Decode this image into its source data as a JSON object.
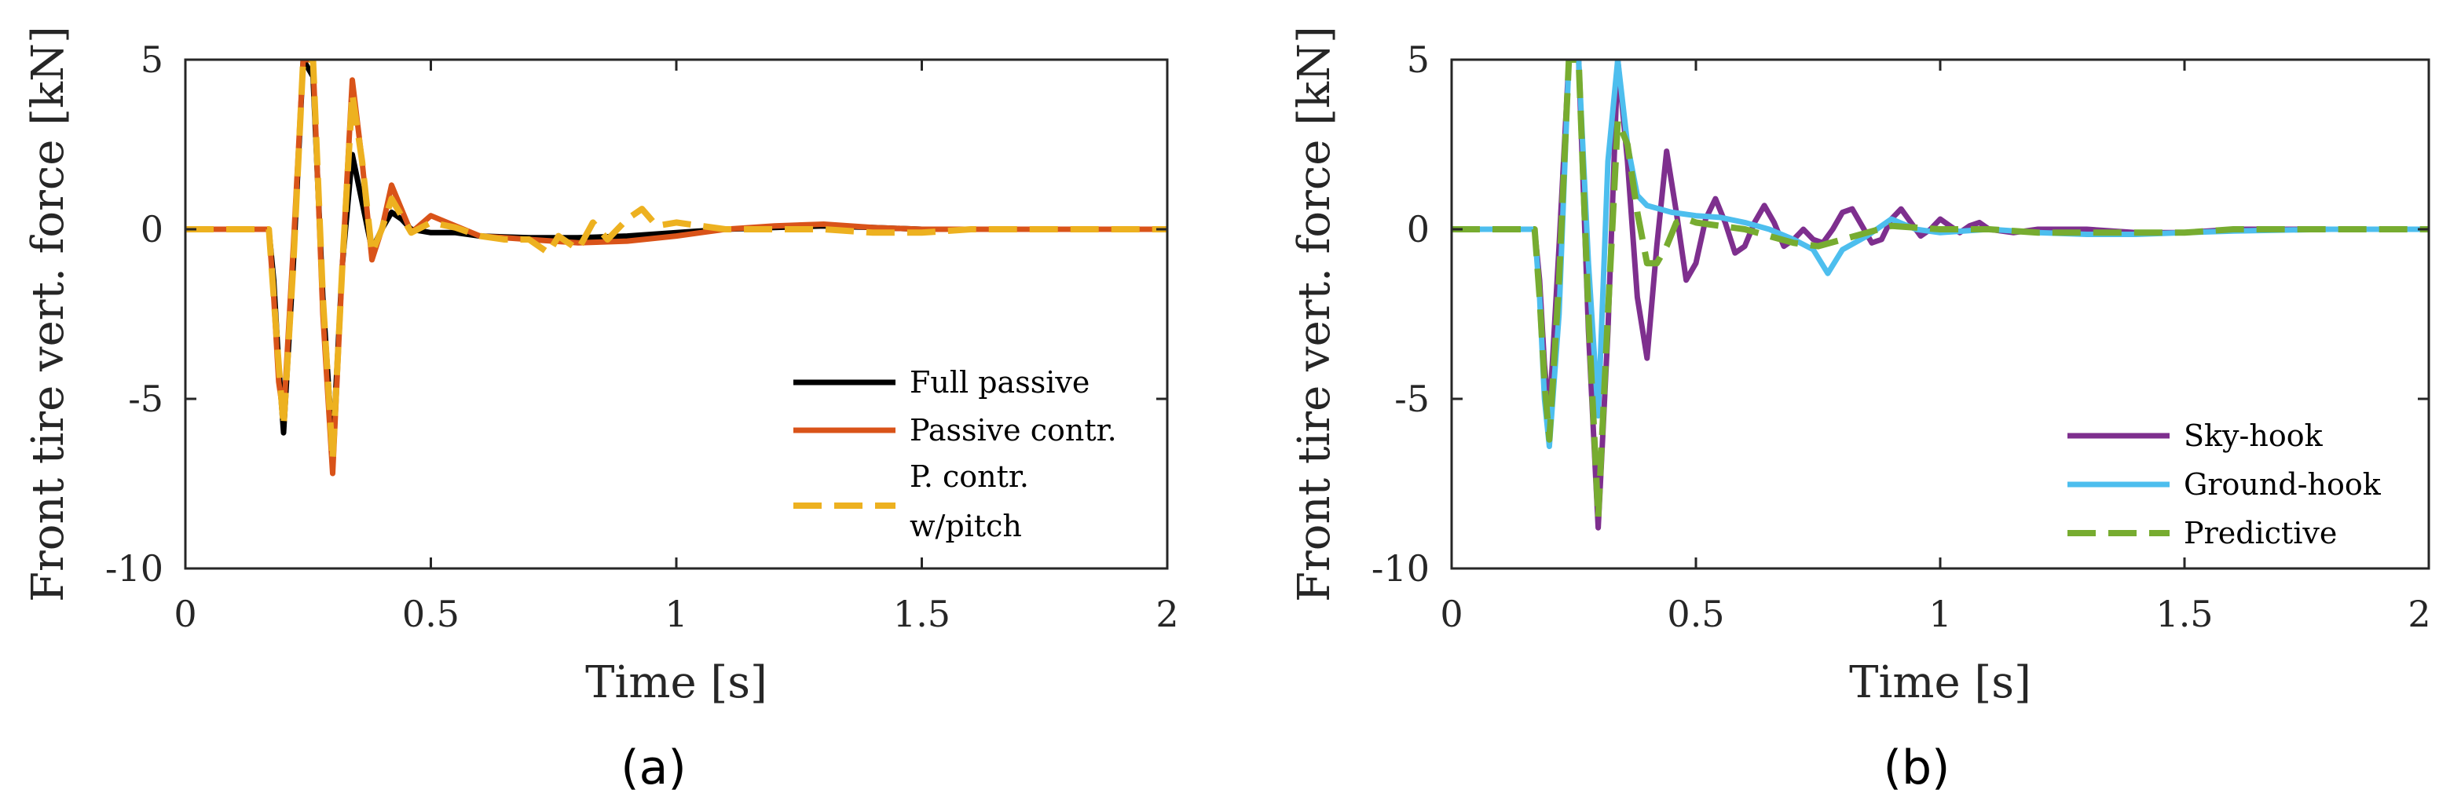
{
  "chart_data": [
    {
      "type": "line",
      "panel_label": "(a)",
      "xlabel": "Time [s]",
      "ylabel": "Front tire vert. force [kN]",
      "xlim": [
        0,
        2
      ],
      "ylim": [
        -10,
        5
      ],
      "xticks": [
        0,
        0.5,
        1,
        1.5,
        2
      ],
      "xtick_labels": [
        "0",
        "0.5",
        "1",
        "1.5",
        "2"
      ],
      "yticks": [
        5,
        0,
        -5,
        -10
      ],
      "ytick_labels": [
        "5",
        "0",
        "-5",
        "-10"
      ],
      "legend_position": "bottom-right",
      "series": [
        {
          "name": "Full passive",
          "color": "#000000",
          "dashed": false,
          "legend_lines": [
            "Full passive"
          ],
          "x": [
            0,
            0.17,
            0.18,
            0.19,
            0.2,
            0.22,
            0.24,
            0.26,
            0.28,
            0.3,
            0.32,
            0.34,
            0.36,
            0.38,
            0.4,
            0.42,
            0.44,
            0.46,
            0.5,
            0.55,
            0.6,
            0.7,
            0.8,
            0.9,
            1.0,
            1.1,
            1.2,
            1.3,
            1.4,
            1.5,
            1.6,
            1.8,
            2.0
          ],
          "y": [
            0,
            0,
            -1.5,
            -4.0,
            -6.0,
            -1.0,
            5.0,
            4.5,
            -2.0,
            -6.5,
            -1.0,
            2.2,
            0.8,
            -0.6,
            0.0,
            0.5,
            0.3,
            0.0,
            -0.1,
            -0.1,
            -0.2,
            -0.25,
            -0.25,
            -0.2,
            -0.1,
            0.0,
            0.05,
            0.1,
            0.05,
            0.0,
            0.0,
            0.0,
            0.0
          ]
        },
        {
          "name": "Passive contr.",
          "color": "#D95319",
          "dashed": false,
          "legend_lines": [
            "Passive contr."
          ],
          "x": [
            0,
            0.17,
            0.18,
            0.19,
            0.2,
            0.22,
            0.24,
            0.26,
            0.28,
            0.3,
            0.32,
            0.34,
            0.36,
            0.38,
            0.4,
            0.42,
            0.44,
            0.46,
            0.5,
            0.55,
            0.6,
            0.7,
            0.8,
            0.9,
            1.0,
            1.1,
            1.2,
            1.3,
            1.4,
            1.5,
            1.6,
            1.8,
            2.0
          ],
          "y": [
            0,
            0,
            -2.0,
            -4.5,
            -5.5,
            -0.5,
            5.0,
            5.0,
            -2.5,
            -7.2,
            -1.0,
            4.4,
            2.0,
            -0.9,
            0.0,
            1.3,
            0.6,
            -0.1,
            0.4,
            0.1,
            -0.2,
            -0.3,
            -0.4,
            -0.35,
            -0.2,
            0.0,
            0.1,
            0.15,
            0.05,
            0.0,
            0.0,
            0.0,
            0.0
          ]
        },
        {
          "name": "P. contr. w/pitch",
          "color": "#EDB120",
          "dashed": true,
          "legend_lines": [
            "P. contr.",
            "w/pitch"
          ],
          "x": [
            0,
            0.17,
            0.18,
            0.19,
            0.2,
            0.22,
            0.24,
            0.26,
            0.28,
            0.3,
            0.32,
            0.34,
            0.36,
            0.38,
            0.4,
            0.42,
            0.44,
            0.46,
            0.5,
            0.55,
            0.6,
            0.65,
            0.7,
            0.74,
            0.76,
            0.78,
            0.8,
            0.83,
            0.86,
            0.88,
            0.9,
            0.93,
            0.96,
            1.0,
            1.05,
            1.1,
            1.2,
            1.3,
            1.4,
            1.5,
            1.6,
            1.8,
            2.0
          ],
          "y": [
            0,
            0,
            -2.0,
            -4.0,
            -5.8,
            -1.0,
            5.0,
            5.0,
            -2.0,
            -6.8,
            -1.0,
            4.0,
            2.0,
            -0.7,
            0.0,
            0.9,
            0.4,
            -0.1,
            0.2,
            0.05,
            -0.2,
            -0.3,
            -0.3,
            -0.7,
            -0.2,
            -0.4,
            -0.6,
            0.2,
            -0.3,
            0.0,
            0.3,
            0.6,
            0.1,
            0.2,
            0.1,
            0.0,
            0.0,
            0.0,
            -0.1,
            -0.1,
            0.0,
            0.0,
            0.0
          ]
        }
      ]
    },
    {
      "type": "line",
      "panel_label": "(b)",
      "xlabel": "Time [s]",
      "ylabel": "Front tire vert. force [kN]",
      "xlim": [
        0,
        2
      ],
      "ylim": [
        -10,
        5
      ],
      "xticks": [
        0,
        0.5,
        1,
        1.5,
        2
      ],
      "xtick_labels": [
        "0",
        "0.5",
        "1",
        "1.5",
        "2"
      ],
      "yticks": [
        5,
        0,
        -5,
        -10
      ],
      "ytick_labels": [
        "5",
        "0",
        "-5",
        "-10"
      ],
      "legend_position": "bottom-right",
      "series": [
        {
          "name": "Sky-hook",
          "color": "#7E2F8E",
          "dashed": false,
          "legend_lines": [
            "Sky-hook"
          ],
          "x": [
            0,
            0.17,
            0.18,
            0.19,
            0.2,
            0.22,
            0.24,
            0.26,
            0.28,
            0.3,
            0.32,
            0.34,
            0.36,
            0.38,
            0.4,
            0.42,
            0.44,
            0.46,
            0.48,
            0.5,
            0.52,
            0.54,
            0.56,
            0.58,
            0.6,
            0.62,
            0.64,
            0.66,
            0.68,
            0.7,
            0.72,
            0.74,
            0.76,
            0.78,
            0.8,
            0.82,
            0.84,
            0.86,
            0.88,
            0.9,
            0.92,
            0.94,
            0.96,
            0.98,
            1.0,
            1.02,
            1.04,
            1.06,
            1.08,
            1.1,
            1.15,
            1.2,
            1.3,
            1.4,
            1.5,
            1.6,
            1.8,
            2.0
          ],
          "y": [
            0,
            0,
            -1.5,
            -4.0,
            -5.5,
            -0.5,
            5.0,
            5.0,
            -3.0,
            -8.8,
            -3.0,
            5.0,
            2.0,
            -2.0,
            -3.8,
            -0.5,
            2.3,
            0.5,
            -1.5,
            -1.0,
            0.3,
            0.9,
            0.2,
            -0.7,
            -0.5,
            0.2,
            0.7,
            0.2,
            -0.5,
            -0.3,
            0.0,
            -0.3,
            -0.4,
            0.0,
            0.5,
            0.6,
            0.1,
            -0.4,
            -0.3,
            0.3,
            0.6,
            0.2,
            -0.2,
            0.0,
            0.3,
            0.1,
            -0.1,
            0.1,
            0.2,
            0.0,
            -0.1,
            0.0,
            0.0,
            -0.1,
            -0.1,
            0.0,
            0.0,
            0.0
          ]
        },
        {
          "name": "Ground-hook",
          "color": "#4DBEEE",
          "dashed": false,
          "legend_lines": [
            "Ground-hook"
          ],
          "x": [
            0,
            0.17,
            0.18,
            0.19,
            0.2,
            0.22,
            0.24,
            0.26,
            0.28,
            0.3,
            0.32,
            0.34,
            0.36,
            0.38,
            0.4,
            0.45,
            0.5,
            0.55,
            0.6,
            0.65,
            0.7,
            0.74,
            0.77,
            0.8,
            0.85,
            0.9,
            0.95,
            1.0,
            1.1,
            1.2,
            1.3,
            1.4,
            1.5,
            1.6,
            1.8,
            2.0
          ],
          "y": [
            0,
            0,
            -2.0,
            -5.0,
            -6.4,
            -2.5,
            5.0,
            5.0,
            -1.0,
            -5.5,
            2.0,
            5.0,
            2.5,
            1.0,
            0.7,
            0.5,
            0.4,
            0.35,
            0.2,
            0.0,
            -0.3,
            -0.6,
            -1.3,
            -0.6,
            -0.2,
            0.3,
            0.0,
            -0.1,
            0.0,
            -0.1,
            -0.15,
            -0.15,
            -0.1,
            -0.05,
            0.0,
            0.0
          ]
        },
        {
          "name": "Predictive",
          "color": "#77AC30",
          "dashed": true,
          "legend_lines": [
            "Predictive"
          ],
          "x": [
            0,
            0.17,
            0.18,
            0.19,
            0.2,
            0.22,
            0.24,
            0.26,
            0.28,
            0.3,
            0.32,
            0.34,
            0.36,
            0.38,
            0.4,
            0.42,
            0.44,
            0.46,
            0.48,
            0.5,
            0.55,
            0.6,
            0.65,
            0.7,
            0.75,
            0.8,
            0.85,
            0.9,
            1.0,
            1.1,
            1.2,
            1.3,
            1.4,
            1.5,
            1.6,
            1.8,
            2.0
          ],
          "y": [
            0,
            0,
            -2.0,
            -4.5,
            -6.2,
            -1.5,
            5.0,
            5.0,
            -2.5,
            -8.5,
            -2.5,
            3.2,
            2.5,
            0.5,
            -1.0,
            -1.0,
            -0.5,
            0.2,
            0.3,
            0.2,
            0.1,
            0.0,
            -0.2,
            -0.4,
            -0.5,
            -0.3,
            -0.1,
            0.1,
            0.0,
            0.0,
            -0.1,
            -0.1,
            -0.1,
            -0.1,
            0.0,
            0.0,
            0.0
          ]
        }
      ]
    }
  ]
}
